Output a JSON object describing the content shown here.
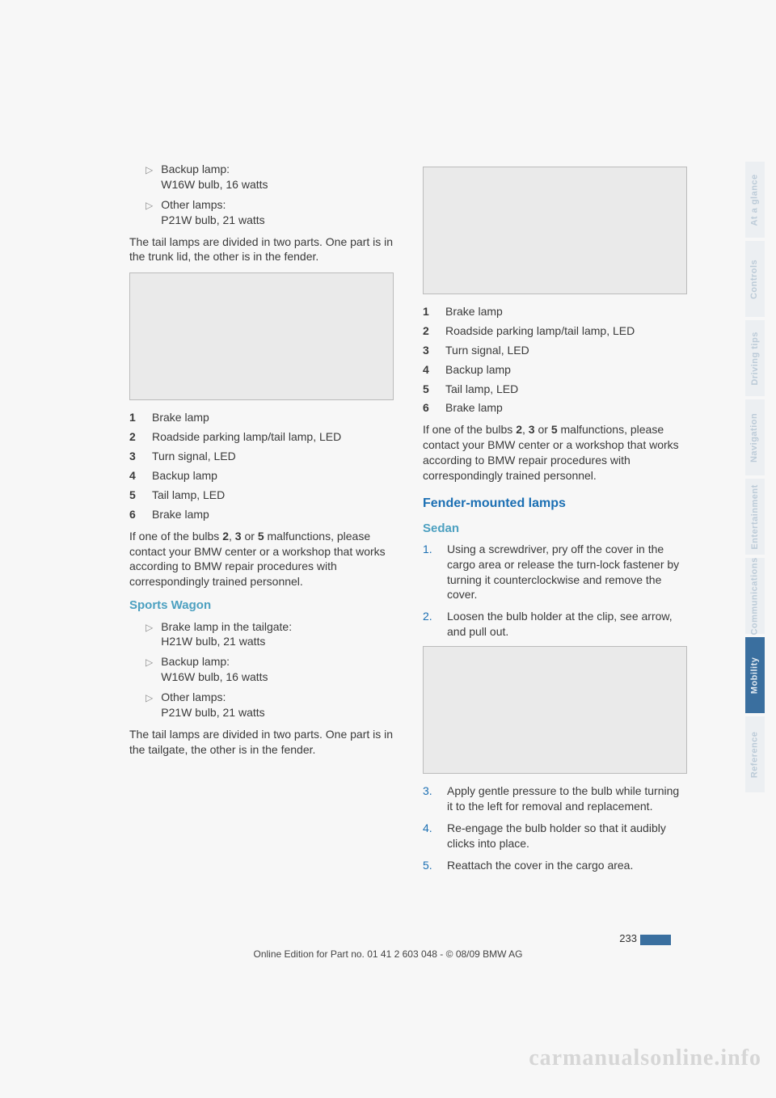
{
  "left": {
    "bullets_top": [
      {
        "title": "Backup lamp:",
        "sub": "W16W bulb, 16 watts"
      },
      {
        "title": "Other lamps:",
        "sub": "P21W bulb, 21 watts"
      }
    ],
    "para1": "The tail lamps are divided in two parts. One part is in the trunk lid, the other is in the fender.",
    "numlist": [
      "Brake lamp",
      "Roadside parking lamp/tail lamp, LED",
      "Turn signal, LED",
      "Backup lamp",
      "Tail lamp, LED",
      "Brake lamp"
    ],
    "para2_a": "If one of the bulbs ",
    "para2_b": "2",
    "para2_c": ", ",
    "para2_d": "3",
    "para2_e": " or ",
    "para2_f": "5",
    "para2_g": " malfunctions, please contact your BMW center or a workshop that works according to BMW repair procedures with correspondingly trained personnel.",
    "heading_sw": "Sports Wagon",
    "bullets_sw": [
      {
        "title": "Brake lamp in the tailgate:",
        "sub": "H21W bulb, 21 watts"
      },
      {
        "title": "Backup lamp:",
        "sub": "W16W bulb, 16 watts"
      },
      {
        "title": "Other lamps:",
        "sub": "P21W bulb, 21 watts"
      }
    ],
    "para3": "The tail lamps are divided in two parts. One part is in the tailgate, the other is in the fender."
  },
  "right": {
    "numlist": [
      "Brake lamp",
      "Roadside parking lamp/tail lamp, LED",
      "Turn signal, LED",
      "Backup lamp",
      "Tail lamp, LED",
      "Brake lamp"
    ],
    "para1_a": "If one of the bulbs ",
    "para1_b": "2",
    "para1_c": ", ",
    "para1_d": "3",
    "para1_e": " or ",
    "para1_f": "5",
    "para1_g": " malfunctions, please contact your BMW center or a workshop that works according to BMW repair procedures with correspondingly trained personnel.",
    "heading_fm": "Fender-mounted lamps",
    "heading_sedan": "Sedan",
    "steps_1": [
      "Using a screwdriver, pry off the cover in the cargo area or release the turn-lock fastener by turning it counterclockwise and remove the cover.",
      "Loosen the bulb holder at the clip, see arrow, and pull out."
    ],
    "steps_2": [
      "Apply gentle pressure to the bulb while turning it to the left for removal and replacement.",
      "Re-engage the bulb holder so that it audibly clicks into place.",
      "Reattach the cover in the cargo area."
    ]
  },
  "sidebar": [
    {
      "label": "At a glance",
      "active": false
    },
    {
      "label": "Controls",
      "active": false
    },
    {
      "label": "Driving tips",
      "active": false
    },
    {
      "label": "Navigation",
      "active": false
    },
    {
      "label": "Entertainment",
      "active": false
    },
    {
      "label": "Communications",
      "active": false
    },
    {
      "label": "Mobility",
      "active": true
    },
    {
      "label": "Reference",
      "active": false
    }
  ],
  "pagenum": "233",
  "footer": "Online Edition for Part no. 01 41 2 603 048 - © 08/09 BMW AG",
  "watermark": "carmanualsonline.info"
}
